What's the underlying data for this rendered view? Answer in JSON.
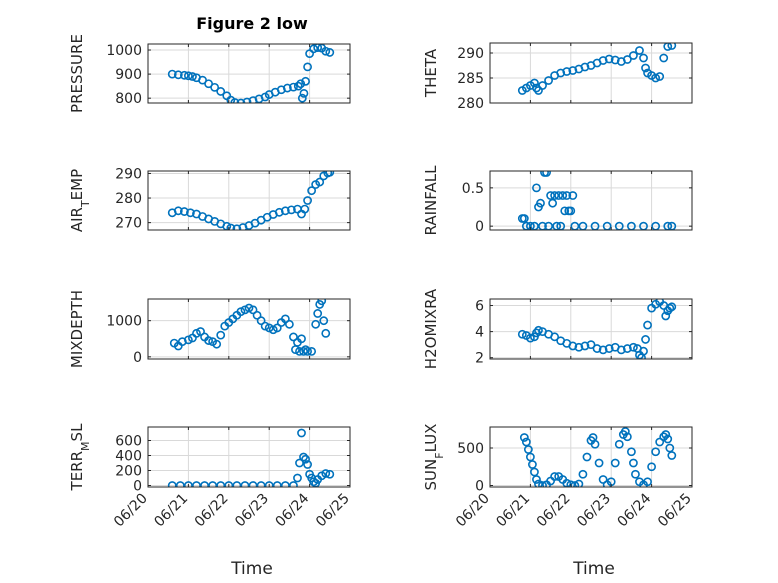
{
  "figure": {
    "title": "Figure 2 low",
    "xlabel": "Time",
    "x_tick_labels": [
      "06/20",
      "06/21",
      "06/22",
      "06/23",
      "06/24",
      "06/25"
    ],
    "marker_color": "#0072BD",
    "grid_color": "#d9d9d9",
    "axis_color": "#262626"
  },
  "chart_data": [
    {
      "type": "scatter",
      "ylabel": "PRESSURE",
      "ylim": [
        780,
        1025
      ],
      "yticks": [
        800,
        900,
        1000
      ],
      "ytick_labels": [
        "800",
        "900",
        "1000"
      ],
      "xlim": [
        20,
        25
      ],
      "grid": true,
      "points": [
        [
          20.6,
          900
        ],
        [
          20.75,
          897
        ],
        [
          20.9,
          895
        ],
        [
          21.0,
          893
        ],
        [
          21.1,
          890
        ],
        [
          21.2,
          885
        ],
        [
          21.35,
          875
        ],
        [
          21.5,
          860
        ],
        [
          21.65,
          845
        ],
        [
          21.8,
          828
        ],
        [
          21.95,
          810
        ],
        [
          22.05,
          792
        ],
        [
          22.15,
          782
        ],
        [
          22.3,
          780
        ],
        [
          22.45,
          784
        ],
        [
          22.6,
          790
        ],
        [
          22.75,
          797
        ],
        [
          22.9,
          805
        ],
        [
          23.0,
          815
        ],
        [
          23.15,
          825
        ],
        [
          23.3,
          835
        ],
        [
          23.45,
          842
        ],
        [
          23.6,
          846
        ],
        [
          23.72,
          850
        ],
        [
          23.78,
          860
        ],
        [
          23.82,
          800
        ],
        [
          23.86,
          820
        ],
        [
          23.9,
          870
        ],
        [
          23.95,
          930
        ],
        [
          24.0,
          985
        ],
        [
          24.1,
          1005
        ],
        [
          24.2,
          1010
        ],
        [
          24.3,
          1008
        ],
        [
          24.4,
          995
        ],
        [
          24.5,
          990
        ]
      ]
    },
    {
      "type": "scatter",
      "ylabel": "THETA",
      "ylim": [
        280,
        292
      ],
      "yticks": [
        280,
        285,
        290
      ],
      "ytick_labels": [
        "280",
        "285",
        "290"
      ],
      "xlim": [
        20,
        25
      ],
      "grid": true,
      "points": [
        [
          20.8,
          282.5
        ],
        [
          20.9,
          283
        ],
        [
          21.0,
          283.5
        ],
        [
          21.1,
          284
        ],
        [
          21.15,
          283
        ],
        [
          21.2,
          282.5
        ],
        [
          21.3,
          283.5
        ],
        [
          21.45,
          284.5
        ],
        [
          21.6,
          285.5
        ],
        [
          21.75,
          286
        ],
        [
          21.9,
          286.3
        ],
        [
          22.05,
          286.5
        ],
        [
          22.2,
          286.8
        ],
        [
          22.35,
          287.2
        ],
        [
          22.5,
          287.5
        ],
        [
          22.65,
          288
        ],
        [
          22.8,
          288.5
        ],
        [
          22.95,
          288.8
        ],
        [
          23.1,
          288.6
        ],
        [
          23.25,
          288.3
        ],
        [
          23.4,
          288.7
        ],
        [
          23.55,
          289.5
        ],
        [
          23.7,
          290.5
        ],
        [
          23.8,
          289
        ],
        [
          23.85,
          287
        ],
        [
          23.9,
          286
        ],
        [
          24.0,
          285.5
        ],
        [
          24.1,
          285
        ],
        [
          24.2,
          285.3
        ],
        [
          24.3,
          289
        ],
        [
          24.4,
          291.3
        ],
        [
          24.5,
          291.5
        ]
      ]
    },
    {
      "type": "scatter",
      "ylabel": "AIR_TEMP",
      "ylim": [
        267,
        291
      ],
      "yticks": [
        270,
        280,
        290
      ],
      "ytick_labels": [
        "270",
        "280",
        "290"
      ],
      "xlim": [
        20,
        25
      ],
      "grid": true,
      "points": [
        [
          20.6,
          274
        ],
        [
          20.75,
          274.8
        ],
        [
          20.9,
          274.5
        ],
        [
          21.05,
          274
        ],
        [
          21.2,
          273.5
        ],
        [
          21.35,
          272.5
        ],
        [
          21.5,
          271.5
        ],
        [
          21.65,
          270.5
        ],
        [
          21.8,
          269.5
        ],
        [
          21.95,
          268.5
        ],
        [
          22.05,
          267.8
        ],
        [
          22.2,
          267.5
        ],
        [
          22.35,
          268
        ],
        [
          22.5,
          268.8
        ],
        [
          22.65,
          269.8
        ],
        [
          22.8,
          271
        ],
        [
          22.95,
          272.2
        ],
        [
          23.1,
          273.3
        ],
        [
          23.25,
          274.2
        ],
        [
          23.4,
          274.8
        ],
        [
          23.55,
          275.2
        ],
        [
          23.7,
          275.5
        ],
        [
          23.8,
          273.5
        ],
        [
          23.88,
          275.5
        ],
        [
          23.95,
          279
        ],
        [
          24.05,
          283
        ],
        [
          24.15,
          285.5
        ],
        [
          24.25,
          286.5
        ],
        [
          24.35,
          289
        ],
        [
          24.45,
          290.2
        ],
        [
          24.5,
          290.5
        ]
      ]
    },
    {
      "type": "scatter",
      "ylabel": "RAINFALL",
      "ylim": [
        -0.05,
        0.72
      ],
      "yticks": [
        0,
        0.5
      ],
      "ytick_labels": [
        "0",
        "0.5"
      ],
      "xlim": [
        20,
        25
      ],
      "grid": true,
      "points": [
        [
          20.8,
          0.1
        ],
        [
          20.85,
          0.1
        ],
        [
          20.9,
          0
        ],
        [
          21.0,
          0
        ],
        [
          21.1,
          0
        ],
        [
          21.15,
          0.5
        ],
        [
          21.2,
          0.25
        ],
        [
          21.25,
          0.3
        ],
        [
          21.3,
          0
        ],
        [
          21.35,
          0.7
        ],
        [
          21.4,
          0.7
        ],
        [
          21.45,
          0
        ],
        [
          21.5,
          0.4
        ],
        [
          21.55,
          0.3
        ],
        [
          21.6,
          0.4
        ],
        [
          21.65,
          0
        ],
        [
          21.7,
          0.4
        ],
        [
          21.75,
          0
        ],
        [
          21.8,
          0.4
        ],
        [
          21.85,
          0.2
        ],
        [
          21.9,
          0.4
        ],
        [
          21.95,
          0.2
        ],
        [
          22.0,
          0.2
        ],
        [
          22.05,
          0.4
        ],
        [
          22.1,
          0
        ],
        [
          22.3,
          0
        ],
        [
          22.6,
          0
        ],
        [
          22.9,
          0
        ],
        [
          23.2,
          0
        ],
        [
          23.5,
          0
        ],
        [
          23.8,
          0
        ],
        [
          24.1,
          0
        ],
        [
          24.4,
          0
        ],
        [
          24.5,
          0
        ]
      ]
    },
    {
      "type": "scatter",
      "ylabel": "MIXDEPTH",
      "ylim": [
        -60,
        1600
      ],
      "yticks": [
        0,
        1000
      ],
      "ytick_labels": [
        "0",
        "1000"
      ],
      "xlim": [
        20,
        25
      ],
      "grid": true,
      "points": [
        [
          20.65,
          380
        ],
        [
          20.75,
          300
        ],
        [
          20.85,
          420
        ],
        [
          21.0,
          470
        ],
        [
          21.1,
          520
        ],
        [
          21.2,
          650
        ],
        [
          21.3,
          700
        ],
        [
          21.4,
          550
        ],
        [
          21.5,
          450
        ],
        [
          21.6,
          420
        ],
        [
          21.7,
          350
        ],
        [
          21.8,
          600
        ],
        [
          21.9,
          850
        ],
        [
          22.0,
          950
        ],
        [
          22.1,
          1050
        ],
        [
          22.2,
          1150
        ],
        [
          22.3,
          1250
        ],
        [
          22.4,
          1300
        ],
        [
          22.5,
          1350
        ],
        [
          22.6,
          1300
        ],
        [
          22.7,
          1150
        ],
        [
          22.8,
          1000
        ],
        [
          22.9,
          850
        ],
        [
          23.0,
          800
        ],
        [
          23.1,
          750
        ],
        [
          23.2,
          800
        ],
        [
          23.3,
          950
        ],
        [
          23.4,
          1050
        ],
        [
          23.5,
          900
        ],
        [
          23.6,
          550
        ],
        [
          23.65,
          200
        ],
        [
          23.7,
          400
        ],
        [
          23.75,
          150
        ],
        [
          23.8,
          500
        ],
        [
          23.85,
          150
        ],
        [
          23.9,
          200
        ],
        [
          23.95,
          150
        ],
        [
          24.05,
          150
        ],
        [
          24.15,
          900
        ],
        [
          24.2,
          1200
        ],
        [
          24.25,
          1450
        ],
        [
          24.3,
          1550
        ],
        [
          24.35,
          1000
        ],
        [
          24.4,
          650
        ]
      ]
    },
    {
      "type": "scatter",
      "ylabel": "H2OMIXRA",
      "ylim": [
        1.9,
        6.5
      ],
      "yticks": [
        2,
        4,
        6
      ],
      "ytick_labels": [
        "2",
        "4",
        "6"
      ],
      "xlim": [
        20,
        25
      ],
      "grid": true,
      "points": [
        [
          20.8,
          3.8
        ],
        [
          20.9,
          3.7
        ],
        [
          21.0,
          3.5
        ],
        [
          21.1,
          3.6
        ],
        [
          21.15,
          3.9
        ],
        [
          21.2,
          4.1
        ],
        [
          21.3,
          4.0
        ],
        [
          21.45,
          3.8
        ],
        [
          21.6,
          3.6
        ],
        [
          21.75,
          3.3
        ],
        [
          21.9,
          3.1
        ],
        [
          22.05,
          2.9
        ],
        [
          22.2,
          2.8
        ],
        [
          22.35,
          2.9
        ],
        [
          22.5,
          3.0
        ],
        [
          22.65,
          2.7
        ],
        [
          22.8,
          2.6
        ],
        [
          22.95,
          2.7
        ],
        [
          23.1,
          2.8
        ],
        [
          23.25,
          2.6
        ],
        [
          23.4,
          2.7
        ],
        [
          23.55,
          2.8
        ],
        [
          23.65,
          2.7
        ],
        [
          23.7,
          2.2
        ],
        [
          23.75,
          2.0
        ],
        [
          23.8,
          2.5
        ],
        [
          23.85,
          3.4
        ],
        [
          23.9,
          4.5
        ],
        [
          24.0,
          5.8
        ],
        [
          24.1,
          6.1
        ],
        [
          24.2,
          6.3
        ],
        [
          24.3,
          6.0
        ],
        [
          24.35,
          5.2
        ],
        [
          24.4,
          5.6
        ],
        [
          24.45,
          5.8
        ],
        [
          24.5,
          5.9
        ]
      ]
    },
    {
      "type": "scatter",
      "ylabel": "TERR_MSL",
      "ylim": [
        -20,
        780
      ],
      "yticks": [
        0,
        200,
        400,
        600
      ],
      "ytick_labels": [
        "0",
        "200",
        "400",
        "600"
      ],
      "xlim": [
        20,
        25
      ],
      "grid": true,
      "points": [
        [
          20.6,
          0
        ],
        [
          20.8,
          0
        ],
        [
          21.0,
          0
        ],
        [
          21.2,
          0
        ],
        [
          21.4,
          0
        ],
        [
          21.6,
          0
        ],
        [
          21.8,
          0
        ],
        [
          22.0,
          0
        ],
        [
          22.2,
          0
        ],
        [
          22.4,
          0
        ],
        [
          22.6,
          0
        ],
        [
          22.8,
          0
        ],
        [
          23.0,
          0
        ],
        [
          23.2,
          0
        ],
        [
          23.4,
          0
        ],
        [
          23.6,
          0
        ],
        [
          23.7,
          100
        ],
        [
          23.75,
          300
        ],
        [
          23.8,
          700
        ],
        [
          23.85,
          380
        ],
        [
          23.9,
          350
        ],
        [
          23.95,
          280
        ],
        [
          24.0,
          150
        ],
        [
          24.05,
          100
        ],
        [
          24.1,
          50
        ],
        [
          24.15,
          30
        ],
        [
          24.2,
          80
        ],
        [
          24.3,
          130
        ],
        [
          24.4,
          160
        ],
        [
          24.5,
          150
        ]
      ]
    },
    {
      "type": "scatter",
      "ylabel": "SUN_FLUX",
      "ylim": [
        -20,
        780
      ],
      "yticks": [
        0,
        500
      ],
      "ytick_labels": [
        "0",
        "500"
      ],
      "xlim": [
        20,
        25
      ],
      "grid": true,
      "points": [
        [
          20.85,
          640
        ],
        [
          20.9,
          580
        ],
        [
          20.95,
          480
        ],
        [
          21.0,
          380
        ],
        [
          21.05,
          280
        ],
        [
          21.1,
          180
        ],
        [
          21.15,
          80
        ],
        [
          21.2,
          20
        ],
        [
          21.3,
          0
        ],
        [
          21.4,
          10
        ],
        [
          21.5,
          60
        ],
        [
          21.6,
          120
        ],
        [
          21.7,
          120
        ],
        [
          21.8,
          80
        ],
        [
          21.9,
          30
        ],
        [
          22.0,
          10
        ],
        [
          22.1,
          0
        ],
        [
          22.2,
          20
        ],
        [
          22.3,
          150
        ],
        [
          22.4,
          380
        ],
        [
          22.5,
          600
        ],
        [
          22.55,
          640
        ],
        [
          22.6,
          550
        ],
        [
          22.7,
          300
        ],
        [
          22.8,
          80
        ],
        [
          22.9,
          10
        ],
        [
          23.0,
          50
        ],
        [
          23.1,
          300
        ],
        [
          23.2,
          550
        ],
        [
          23.3,
          680
        ],
        [
          23.35,
          720
        ],
        [
          23.4,
          650
        ],
        [
          23.5,
          450
        ],
        [
          23.55,
          300
        ],
        [
          23.6,
          150
        ],
        [
          23.7,
          50
        ],
        [
          23.8,
          10
        ],
        [
          23.9,
          50
        ],
        [
          24.0,
          250
        ],
        [
          24.1,
          450
        ],
        [
          24.2,
          580
        ],
        [
          24.3,
          650
        ],
        [
          24.35,
          680
        ],
        [
          24.4,
          620
        ],
        [
          24.45,
          500
        ],
        [
          24.5,
          400
        ]
      ]
    }
  ]
}
